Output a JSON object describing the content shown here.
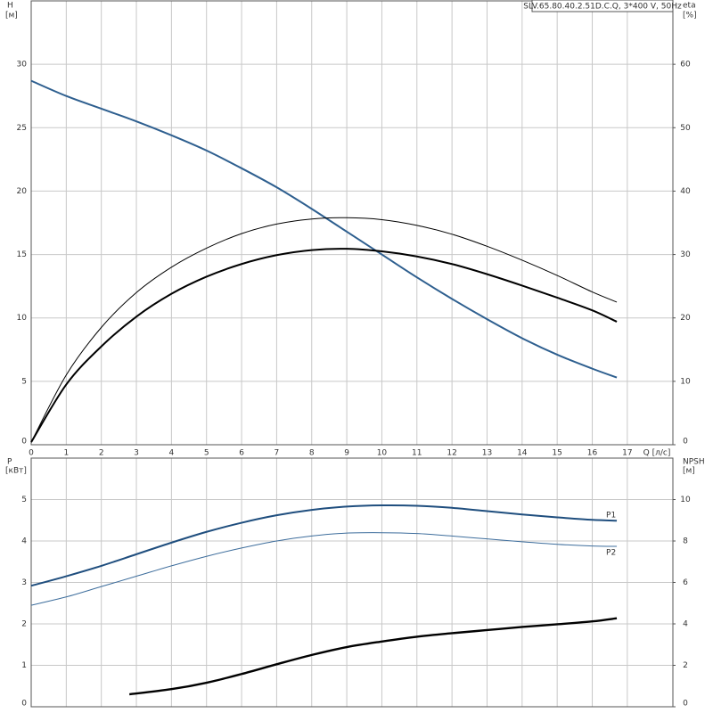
{
  "chart_data": [
    {
      "type": "line",
      "title": "SLV.65.80.40.2.51D.C.Q, 3*400 V, 50Hz",
      "xlabel": "Q [л/с]",
      "ylabel": "H",
      "ylabel_unit": "[м]",
      "y2label": "eta",
      "y2label_unit": "[%]",
      "xlim": [
        0,
        18.3
      ],
      "xticks": [
        0,
        1,
        2,
        3,
        4,
        5,
        6,
        7,
        8,
        9,
        10,
        11,
        12,
        13,
        14,
        15,
        16,
        17
      ],
      "ylim": [
        0,
        35
      ],
      "yticks": [
        0,
        5,
        10,
        15,
        20,
        25,
        30
      ],
      "y2lim": [
        0,
        70
      ],
      "y2ticks": [
        0,
        10,
        20,
        30,
        40,
        50,
        60
      ],
      "grid": true,
      "x": [
        0,
        1,
        2,
        3,
        4,
        5,
        6,
        7,
        8,
        9,
        10,
        11,
        12,
        13,
        14,
        15,
        16,
        16.7
      ],
      "series": [
        {
          "color": "#2e5f8f",
          "values": [
            28.7,
            27.5,
            26.5,
            25.5,
            24.4,
            23.2,
            21.8,
            20.3,
            18.6,
            16.8,
            15.0,
            13.2,
            11.5,
            9.9,
            8.4,
            7.1,
            6.0,
            5.3
          ]
        },
        {
          "color": "#000000",
          "axis": "y2",
          "values": [
            0.4,
            11,
            18.5,
            24,
            28,
            31,
            33.3,
            34.8,
            35.6,
            35.8,
            35.5,
            34.6,
            33.2,
            31.3,
            29.1,
            26.7,
            24.1,
            22.5
          ]
        },
        {
          "color": "#000000",
          "axis": "y2",
          "values": [
            0.4,
            9.5,
            15.5,
            20.2,
            23.8,
            26.5,
            28.5,
            29.9,
            30.7,
            30.9,
            30.5,
            29.7,
            28.5,
            26.9,
            25.1,
            23.2,
            21.2,
            19.4
          ]
        }
      ]
    },
    {
      "type": "line",
      "ylabel": "P",
      "ylabel_unit": "[кВт]",
      "y2label": "NPSH",
      "y2label_unit": "[м]",
      "xlim": [
        0,
        18.3
      ],
      "ylim": [
        0,
        6
      ],
      "yticks": [
        0,
        1,
        2,
        3,
        4,
        5
      ],
      "y2lim": [
        0,
        12
      ],
      "y2ticks": [
        0,
        2,
        4,
        6,
        8,
        10
      ],
      "grid": true,
      "x": [
        0,
        1,
        2,
        3,
        4,
        5,
        6,
        7,
        8,
        9,
        10,
        11,
        12,
        13,
        14,
        15,
        16,
        16.7
      ],
      "series": [
        {
          "name": "P1",
          "color": "#1f4e7e",
          "values": [
            2.92,
            3.15,
            3.4,
            3.68,
            3.96,
            4.22,
            4.44,
            4.62,
            4.75,
            4.83,
            4.86,
            4.85,
            4.8,
            4.72,
            4.64,
            4.57,
            4.51,
            4.49
          ]
        },
        {
          "name": "P2",
          "color": "#3d6d9c",
          "values": [
            2.45,
            2.65,
            2.9,
            3.15,
            3.4,
            3.63,
            3.83,
            4.0,
            4.12,
            4.19,
            4.2,
            4.18,
            4.12,
            4.05,
            3.98,
            3.92,
            3.88,
            3.87
          ]
        },
        {
          "color": "#000000",
          "axis": "y2",
          "x": [
            2.8,
            4,
            5,
            6,
            7,
            8,
            9,
            10,
            11,
            12,
            13,
            14,
            15,
            16,
            16.7
          ],
          "values": [
            0.6,
            0.85,
            1.16,
            1.58,
            2.05,
            2.5,
            2.88,
            3.15,
            3.38,
            3.55,
            3.7,
            3.85,
            3.98,
            4.12,
            4.27
          ]
        }
      ]
    }
  ]
}
